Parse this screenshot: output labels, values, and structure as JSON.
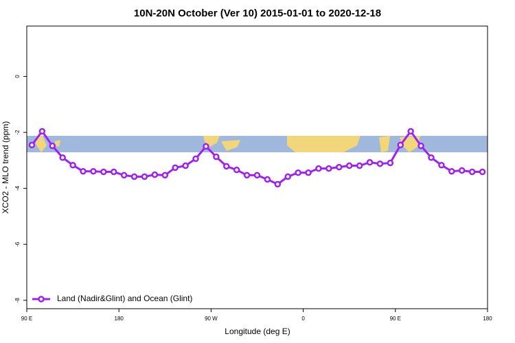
{
  "chart_data": {
    "type": "line",
    "title": "10N-20N October (Ver 10)   2015-01-01 to 2020-12-18",
    "x_label": "Longitude (deg E)",
    "y_label": "XCO2 - MLO trend (ppm)",
    "xlim": [
      90,
      540
    ],
    "xticks": [
      {
        "value": 90,
        "label": "90 E"
      },
      180,
      {
        "value": 270,
        "label": "90 W"
      },
      {
        "value": 360,
        "label": "0"
      },
      {
        "value": 450,
        "label": "90 E"
      },
      {
        "value": 540,
        "label": "180"
      }
    ],
    "ylim": [
      -8.3,
      1.8
    ],
    "yticks": [
      0,
      -2,
      -4,
      -6,
      -8
    ],
    "legend": "bottom-left",
    "x": [
      95,
      105,
      115,
      125,
      135,
      145,
      155,
      165,
      175,
      185,
      195,
      205,
      215,
      225,
      235,
      245,
      255,
      265,
      275,
      285,
      295,
      305,
      315,
      325,
      335,
      345,
      355,
      365,
      375,
      385,
      395,
      405,
      415,
      425,
      435,
      445,
      455,
      465,
      475,
      485,
      495,
      505,
      515,
      525,
      535
    ],
    "series": [
      {
        "name": "Land (Nadir&Glint) and Ocean (Glint)",
        "color": "#a020f0",
        "values": [
          -2.45,
          -1.96,
          -2.48,
          -2.9,
          -3.17,
          -3.39,
          -3.39,
          -3.41,
          -3.41,
          -3.53,
          -3.58,
          -3.58,
          -3.51,
          -3.53,
          -3.26,
          -3.19,
          -2.94,
          -2.5,
          -2.87,
          -3.21,
          -3.34,
          -3.53,
          -3.53,
          -3.68,
          -3.85,
          -3.58,
          -3.44,
          -3.44,
          -3.29,
          -3.29,
          -3.24,
          -3.19,
          -3.19,
          -3.07,
          -3.12,
          -3.09,
          -2.45,
          -1.96,
          -2.48,
          -2.9,
          -3.17,
          -3.39,
          -3.36,
          -3.41,
          -3.41
        ]
      }
    ]
  }
}
